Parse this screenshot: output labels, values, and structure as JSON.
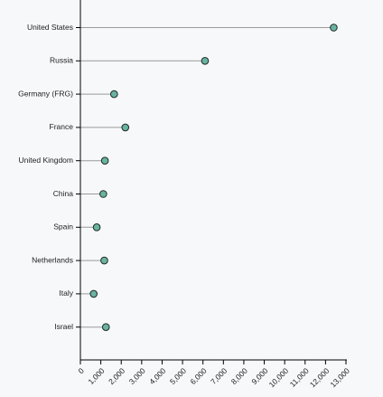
{
  "chart_data": {
    "type": "lollipop",
    "orientation": "horizontal",
    "categories": [
      "United States",
      "Russia",
      "Germany (FRG)",
      "France",
      "United Kingdom",
      "China",
      "Spain",
      "Netherlands",
      "Italy",
      "Israel"
    ],
    "values": [
      12400,
      6100,
      1650,
      2200,
      1200,
      1120,
      800,
      1170,
      650,
      1250
    ],
    "x_ticks": [
      0,
      1000,
      2000,
      3000,
      4000,
      5000,
      6000,
      7000,
      8000,
      9000,
      10000,
      11000,
      12000,
      13000
    ],
    "x_tick_labels": [
      "0",
      "1,000",
      "2,000",
      "3,000",
      "4,000",
      "5,000",
      "6,000",
      "7,000",
      "8,000",
      "9,000",
      "10,000",
      "11,000",
      "12,000",
      "13,000"
    ],
    "xlim": [
      0,
      13000
    ],
    "title": "",
    "xlabel": "",
    "ylabel": "",
    "grid": false,
    "colors": {
      "background": "#f7f8fa",
      "stem": "#9a9a9a",
      "marker_fill": "#69b3a2",
      "marker_stroke": "#1e2a22",
      "axis": "#000000"
    }
  }
}
